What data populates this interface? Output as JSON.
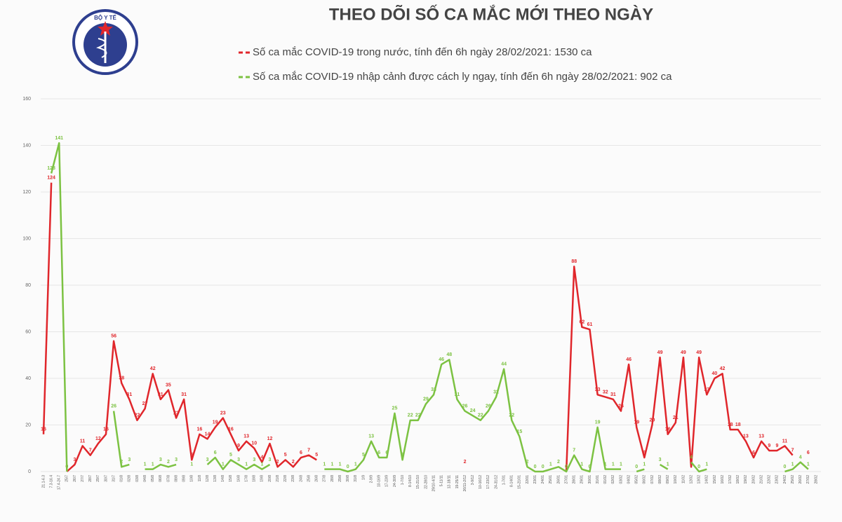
{
  "logo_text": "BỘ Y TẾ",
  "chart_data": {
    "type": "line",
    "title": "THEO DÕI SỐ CA MẮC MỚI THEO NGÀY",
    "categories": [
      "21.1-6.3",
      "7.3-16.4",
      "17.4-24.7",
      "25/7",
      "26/7",
      "27/7",
      "28/7",
      "29/7",
      "30/7",
      "31/7",
      "01/8",
      "02/8",
      "03/8",
      "04/8",
      "05/8",
      "06/8",
      "07/8",
      "08/8",
      "09/8",
      "10/8",
      "11/8",
      "12/8",
      "13/8",
      "14/8",
      "15/8",
      "16/8",
      "17/8",
      "18/8",
      "19/8",
      "20/8",
      "21/8",
      "22/8",
      "23/8",
      "24/8",
      "25/8",
      "26/8",
      "27/8",
      "28/8",
      "29/8",
      "30/8",
      "31/8",
      "1/9",
      "2-9/9",
      "10-16/9",
      "17-23/9",
      "24-30/9",
      "1-7/10",
      "8-14/10",
      "15-21/10",
      "22-28/10",
      "29/10-4/11",
      "5-11/11",
      "12-18/11",
      "19-25/11",
      "26/11-2/12",
      "3-9/12",
      "10-16/12",
      "17-23/12",
      "24-31/12",
      "1-7/01",
      "8-14/01",
      "15-21/01",
      "22/01",
      "23/01",
      "24/01",
      "25/01",
      "26/01",
      "27/01",
      "28/01",
      "29/01",
      "30/01",
      "31/01",
      "01/02",
      "02/02",
      "03/02",
      "04/02",
      "05/02",
      "06/02",
      "07/02",
      "08/02",
      "09/02",
      "10/02",
      "11/02",
      "12/02",
      "13/02",
      "14/02",
      "15/02",
      "16/02",
      "17/02",
      "18/02",
      "19/02",
      "20/02",
      "21/02",
      "22/02",
      "23/02",
      "24/02",
      "25/02",
      "26/02",
      "27/02",
      "28/02"
    ],
    "series": [
      {
        "name": "Số ca mắc COVID-19 trong nước, tính đến 6h ngày 28/02/2021: 1530 ca",
        "color": "#e0262b",
        "values": [
          16,
          124,
          null,
          0,
          3,
          11,
          7,
          12,
          16,
          56,
          38,
          31,
          22,
          27,
          42,
          31,
          35,
          23,
          31,
          5,
          16,
          14,
          19,
          23,
          16,
          9,
          13,
          10,
          4,
          12,
          2,
          5,
          2,
          6,
          7,
          5,
          null,
          null,
          null,
          null,
          null,
          null,
          null,
          null,
          null,
          null,
          null,
          null,
          null,
          null,
          null,
          null,
          null,
          null,
          2,
          null,
          null,
          null,
          null,
          null,
          null,
          null,
          null,
          null,
          null,
          null,
          null,
          0,
          88,
          62,
          61,
          33,
          32,
          31,
          26,
          46,
          19,
          6,
          20,
          49,
          16,
          21,
          49,
          2,
          49,
          33,
          40,
          42,
          18,
          18,
          13,
          6,
          13,
          9,
          9,
          11,
          7,
          null,
          6,
          null
        ]
      },
      {
        "name": "Số ca mắc COVID-19 nhập cảnh được cách ly ngay, tính đến 6h ngày 28/02/2021: 902 ca",
        "color": "#7cc242",
        "values": [
          null,
          128,
          141,
          0,
          null,
          null,
          null,
          null,
          null,
          26,
          2,
          3,
          null,
          1,
          1,
          3,
          2,
          3,
          null,
          1,
          null,
          3,
          6,
          1,
          5,
          3,
          1,
          3,
          1,
          3,
          null,
          null,
          null,
          null,
          null,
          null,
          1,
          1,
          1,
          0,
          1,
          5,
          13,
          6,
          6,
          25,
          5,
          22,
          22,
          29,
          33,
          46,
          48,
          31,
          26,
          24,
          22,
          26,
          32,
          44,
          22,
          15,
          2,
          0,
          0,
          1,
          2,
          0,
          7,
          1,
          0,
          19,
          1,
          1,
          1,
          null,
          0,
          1,
          null,
          3,
          1,
          null,
          null,
          4,
          0,
          1,
          null,
          null,
          null,
          null,
          null,
          null,
          null,
          null,
          null,
          0,
          1,
          4,
          1,
          null
        ]
      }
    ],
    "ylim": [
      0,
      160
    ],
    "yticks": [
      0,
      20,
      40,
      60,
      80,
      100,
      120,
      140,
      160
    ],
    "grid": true
  }
}
